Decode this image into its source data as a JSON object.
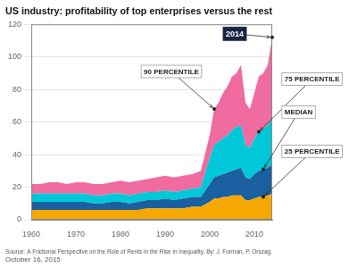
{
  "chart_data": {
    "type": "area",
    "title": "US industry: profitability of top enterprises versus the rest",
    "source": "Source: A Frictional Perspective on the Role of Rents in the Rise in Inequality. By: J. Furman, P. Orszag. October 16, 2015",
    "x": [
      1960,
      1962,
      1964,
      1966,
      1968,
      1970,
      1972,
      1974,
      1976,
      1978,
      1980,
      1982,
      1984,
      1986,
      1988,
      1990,
      1992,
      1994,
      1996,
      1998,
      2000,
      2001,
      2002,
      2003,
      2004,
      2005,
      2006,
      2007,
      2008,
      2009,
      2010,
      2011,
      2012,
      2013,
      2014
    ],
    "series": [
      {
        "name": "25 PERCENTILE",
        "color": "#f5a800",
        "values": [
          6,
          6,
          6,
          6,
          6,
          6,
          6,
          6,
          6,
          6,
          6,
          6,
          6,
          7,
          7,
          7,
          7,
          7,
          8,
          8,
          11,
          13,
          13,
          14,
          14,
          15,
          15,
          15,
          12,
          12,
          13,
          14,
          14,
          15,
          16
        ]
      },
      {
        "name": "MEDIAN",
        "color": "#1a5fa0",
        "values": [
          11,
          11,
          11,
          11,
          11,
          11,
          11,
          10,
          10,
          11,
          11,
          10,
          11,
          12,
          12,
          13,
          12,
          13,
          14,
          14,
          22,
          26,
          27,
          28,
          29,
          30,
          31,
          32,
          26,
          25,
          28,
          30,
          31,
          32,
          34
        ]
      },
      {
        "name": "75 PERCENTILE",
        "color": "#00c8d8",
        "values": [
          16,
          16,
          16,
          16,
          16,
          16,
          16,
          15,
          15,
          16,
          16,
          15,
          16,
          17,
          17,
          18,
          17,
          18,
          19,
          20,
          38,
          46,
          48,
          50,
          52,
          55,
          57,
          58,
          46,
          44,
          50,
          54,
          56,
          58,
          63
        ]
      },
      {
        "name": "90 PERCENTILE",
        "color": "#f06ba0",
        "values": [
          22,
          22,
          23,
          23,
          22,
          23,
          23,
          22,
          22,
          23,
          24,
          23,
          24,
          25,
          26,
          27,
          26,
          27,
          28,
          30,
          52,
          68,
          72,
          78,
          82,
          88,
          90,
          95,
          72,
          68,
          78,
          88,
          90,
          95,
          112
        ]
      }
    ],
    "xlim": [
      1960,
      2014
    ],
    "xticks": [
      1960,
      1970,
      1980,
      1990,
      2000,
      2010
    ],
    "ylim": [
      0,
      120
    ],
    "yticks": [
      0,
      20,
      40,
      60,
      80,
      100,
      120
    ],
    "grid": "y",
    "annotations": [
      {
        "text": "2014",
        "x": 2014,
        "y": 112,
        "color": "#1a2440"
      },
      {
        "text": "90 PERCENTILE",
        "x": 2001,
        "y": 68
      },
      {
        "text": "75 PERCENTILE",
        "x": 2011,
        "y": 54
      },
      {
        "text": "MEDIAN",
        "x": 2012,
        "y": 31
      },
      {
        "text": "25 PERCENTILE",
        "x": 2012,
        "y": 14
      }
    ]
  }
}
